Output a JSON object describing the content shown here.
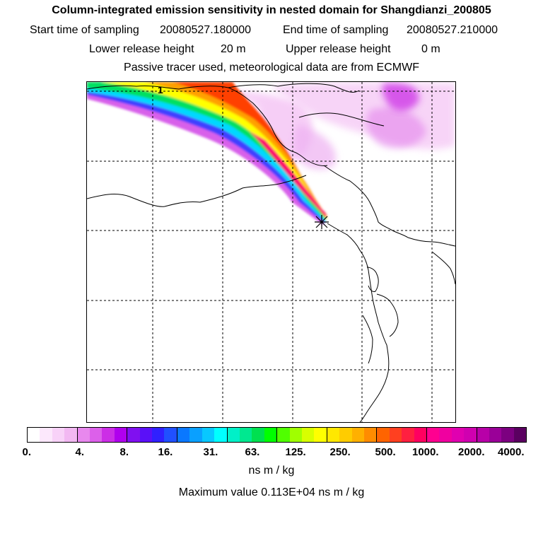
{
  "header": {
    "title": "Column-integrated emission sensitivity in nested domain for Shangdianzi_200805",
    "start_label": "Start time of sampling",
    "start_value": "20080527.180000",
    "end_label": "End time of sampling",
    "end_value": "20080527.210000",
    "lower_label": "Lower release height",
    "lower_value": "20 m",
    "upper_label": "Upper release height",
    "upper_value": "0 m",
    "subtitle": "Passive tracer used, meteorological data are from ECMWF"
  },
  "map": {
    "marker_label": "1",
    "receptor_symbol": "asterisk-cross"
  },
  "colorbar": {
    "colors": [
      "#ffffff",
      "#fce8fc",
      "#f8d2f8",
      "#f2b8f2",
      "#e888ee",
      "#dc60ea",
      "#cc2ee6",
      "#b000ee",
      "#8010f0",
      "#5a10f8",
      "#3020ff",
      "#2050ff",
      "#0a78ff",
      "#0aa0ff",
      "#08c8ff",
      "#00ffff",
      "#00f0c8",
      "#00e890",
      "#00e050",
      "#00ff00",
      "#50ff00",
      "#a0ff00",
      "#d8ff00",
      "#ffff00",
      "#ffe800",
      "#ffcc00",
      "#ffb000",
      "#ff8c00",
      "#ff6400",
      "#ff4020",
      "#ff2040",
      "#ff0060",
      "#ff0090",
      "#f000a0",
      "#e000b0",
      "#d000b0",
      "#b800a8",
      "#9a0098",
      "#7c0080",
      "#5a0060"
    ],
    "tick_labels": [
      "0.",
      "4.",
      "8.",
      "16.",
      "31.",
      "63.",
      "125.",
      "250.",
      "500.",
      "1000.",
      "2000.",
      "4000."
    ],
    "units": "ns m / kg"
  },
  "footer": {
    "max_label": "Maximum value",
    "max_value": "0.113E+04 ns m / kg"
  }
}
